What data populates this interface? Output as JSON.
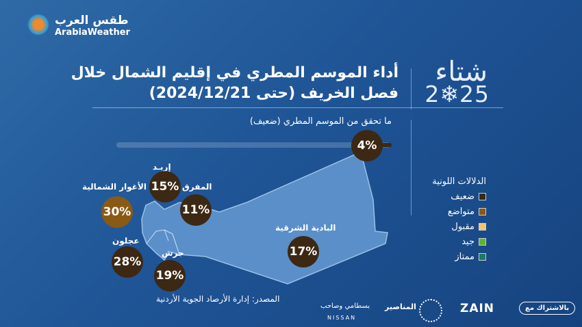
{
  "brand": {
    "name_ar": "طقس العرب",
    "name_en": "ArabiaWeather"
  },
  "season": {
    "word": "شتاء",
    "year": "2❄25"
  },
  "title": "أداء الموسم المطري في إقليم الشمال خلال فصل الخريف (حتى 2024/12/21)",
  "overall": {
    "label": "ما تحقق من الموسم المطري (ضعيف)",
    "value": "4%",
    "percent": 4
  },
  "regions": [
    {
      "name": "إربـد",
      "value": "15%",
      "color": "#3d2813"
    },
    {
      "name": "المفرق",
      "value": "11%",
      "color": "#3d2813"
    },
    {
      "name": "الأغوار الشمالية",
      "value": "30%",
      "color": "#8a5a14"
    },
    {
      "name": "عجلون",
      "value": "28%",
      "color": "#3d2813"
    },
    {
      "name": "جرش",
      "value": "19%",
      "color": "#3d2813"
    },
    {
      "name": "البادية الشرقية",
      "value": "17%",
      "color": "#3d2813"
    }
  ],
  "legend": {
    "title": "الدلالات اللونية",
    "items": [
      {
        "label": "ضعيف",
        "color": "#3d2813"
      },
      {
        "label": "متواضع",
        "color": "#8a5a14"
      },
      {
        "label": "مقبول",
        "color": "#f5c46a"
      },
      {
        "label": "جيد",
        "color": "#5fb52a"
      },
      {
        "label": "ممتاز",
        "color": "#1c7a5e"
      }
    ]
  },
  "source": "المصدر: إدارة الأرصاد الجوية الأردنية",
  "footer": {
    "partner": "بالاشتراك مع",
    "zain": "ZAIN",
    "manaseer": "المناصير",
    "nissan_ar": "بسطامي وصاحب",
    "nissan": "NISSAN"
  }
}
